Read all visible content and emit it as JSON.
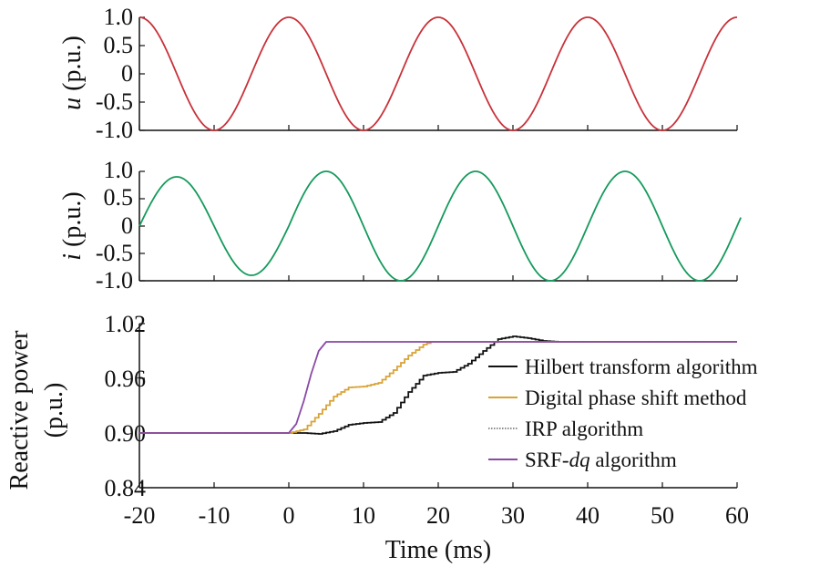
{
  "colors": {
    "voltage": "#c8323a",
    "current": "#159a5c",
    "hilbert": "#111111",
    "digital": "#d9a336",
    "irp": "#666666",
    "srf": "#8a4aa6",
    "axis": "#111111"
  },
  "chart_data": [
    {
      "type": "line",
      "id": "u",
      "ylabel_var": "u",
      "ylabel_unit": " (p.u.)",
      "xlim": [
        -20,
        60
      ],
      "ylim": [
        -1.0,
        1.0
      ],
      "yticks": [
        "-1.0",
        "-0.5",
        "0",
        "0.5",
        "1.0"
      ],
      "series": [
        {
          "amplitude": 1.0,
          "period_ms": 20,
          "phase_ms": 0,
          "description": "cos(2π·50·t)"
        }
      ]
    },
    {
      "type": "line",
      "id": "i",
      "ylabel_var": "i",
      "ylabel_unit": " (p.u.)",
      "xlim": [
        -20,
        60
      ],
      "ylim": [
        -1.0,
        1.0
      ],
      "yticks": [
        "-1.0",
        "-0.5",
        "0",
        "0.5",
        "1.0"
      ],
      "series": [
        {
          "amplitude_before": 0.9,
          "amplitude_after": 1.0,
          "period_ms": 20,
          "peak_at_ms": -15,
          "step_at_ms": 0
        }
      ]
    },
    {
      "type": "line",
      "id": "q",
      "ylabel": "Reactive power",
      "ylabel2": "(p.u.)",
      "xlabel": "Time (ms)",
      "xlim": [
        -20,
        60
      ],
      "ylim": [
        0.84,
        1.02
      ],
      "yticks": [
        "0.84",
        "0.90",
        "0.96",
        "1.02"
      ],
      "xticks": [
        "-20",
        "-10",
        "0",
        "10",
        "20",
        "30",
        "40",
        "50",
        "60"
      ],
      "series": [
        {
          "name": "Hilbert transform algorithm",
          "key": "hilbert",
          "points": [
            [
              -20,
              0.9
            ],
            [
              0,
              0.9
            ],
            [
              2,
              0.9
            ],
            [
              4,
              0.899
            ],
            [
              6,
              0.902
            ],
            [
              8,
              0.909
            ],
            [
              10,
              0.911
            ],
            [
              12,
              0.912
            ],
            [
              14,
              0.922
            ],
            [
              16,
              0.945
            ],
            [
              18,
              0.963
            ],
            [
              20,
              0.966
            ],
            [
              22,
              0.967
            ],
            [
              24,
              0.976
            ],
            [
              26,
              0.99
            ],
            [
              28,
              1.003
            ],
            [
              30,
              1.006
            ],
            [
              32,
              1.004
            ],
            [
              34,
              1.001
            ],
            [
              36,
              1.0
            ],
            [
              60,
              1.0
            ]
          ]
        },
        {
          "name": "Digital phase shift method",
          "key": "digital",
          "points": [
            [
              -20,
              0.9
            ],
            [
              0,
              0.9
            ],
            [
              2,
              0.904
            ],
            [
              4,
              0.921
            ],
            [
              6,
              0.94
            ],
            [
              8,
              0.95
            ],
            [
              10,
              0.951
            ],
            [
              12,
              0.955
            ],
            [
              14,
              0.969
            ],
            [
              16,
              0.985
            ],
            [
              18,
              0.997
            ],
            [
              19,
              1.0
            ],
            [
              60,
              1.0
            ]
          ]
        },
        {
          "name": "IRP algorithm",
          "key": "irp",
          "points": [
            [
              -20,
              0.9
            ],
            [
              0,
              0.9
            ],
            [
              1,
              0.91
            ],
            [
              2,
              0.935
            ],
            [
              3,
              0.965
            ],
            [
              4,
              0.99
            ],
            [
              5,
              1.0
            ],
            [
              60,
              1.0
            ]
          ]
        },
        {
          "name": "SRF-dq algorithm",
          "name_prefix": "SRF-",
          "name_italic": "dq",
          "name_suffix": " algorithm",
          "key": "srf",
          "points": [
            [
              -20,
              0.9
            ],
            [
              0,
              0.9
            ],
            [
              1,
              0.91
            ],
            [
              2,
              0.935
            ],
            [
              3,
              0.965
            ],
            [
              4,
              0.99
            ],
            [
              5,
              1.0
            ],
            [
              60,
              1.0
            ]
          ]
        }
      ]
    }
  ]
}
